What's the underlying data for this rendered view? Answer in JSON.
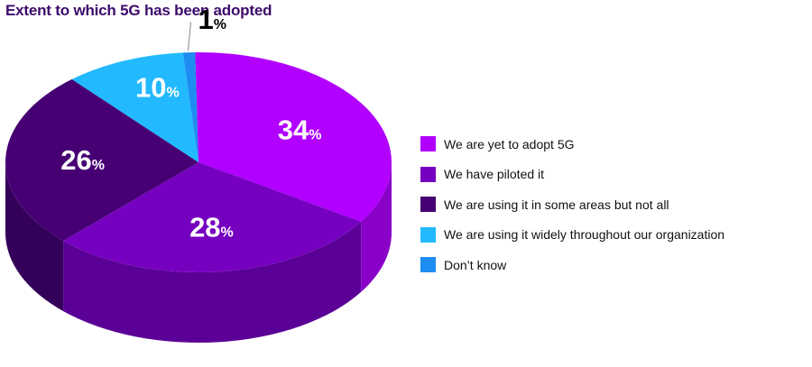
{
  "title": "Extent to which 5G has been adopted",
  "chart_data": {
    "type": "pie",
    "title": "Extent to which 5G has been adopted",
    "legend_position": "right",
    "slices": [
      {
        "label": "We are yet to adopt 5G",
        "value": 34,
        "color": "#b100ff",
        "side_color": "#8a00c9"
      },
      {
        "label": "We have piloted it",
        "value": 28,
        "color": "#7600c0",
        "side_color": "#5b0096"
      },
      {
        "label": "We are using it in some areas but not all",
        "value": 26,
        "color": "#460073",
        "side_color": "#33005a"
      },
      {
        "label": "We are using it widely throughout our organization",
        "value": 10,
        "color": "#22b9ff",
        "side_color": "#1591cc"
      },
      {
        "label": "Don’t know",
        "value": 1,
        "color": "#1e8cf0",
        "side_color": "#1570c4"
      }
    ],
    "value_suffix": "%"
  }
}
